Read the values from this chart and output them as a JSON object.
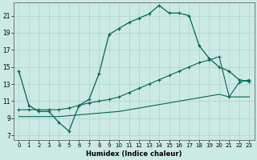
{
  "xlabel": "Humidex (Indice chaleur)",
  "bg_color": "#cceae4",
  "grid_color": "#aad4cc",
  "line_color": "#006655",
  "xlim": [
    -0.5,
    23.5
  ],
  "ylim": [
    6.5,
    22.5
  ],
  "xticks": [
    0,
    1,
    2,
    3,
    4,
    5,
    6,
    7,
    8,
    9,
    10,
    11,
    12,
    13,
    14,
    15,
    16,
    17,
    18,
    19,
    20,
    21,
    22,
    23
  ],
  "yticks": [
    7,
    9,
    11,
    13,
    15,
    17,
    19,
    21
  ],
  "line1_x": [
    0,
    1,
    2,
    3,
    4,
    5,
    6,
    7,
    8,
    9,
    10,
    11,
    12,
    13,
    14,
    15,
    16,
    17,
    18,
    19,
    20,
    21,
    22,
    23
  ],
  "line1_y": [
    14.5,
    10.5,
    9.8,
    9.8,
    8.5,
    7.5,
    10.5,
    11.2,
    14.2,
    18.8,
    19.5,
    20.2,
    20.7,
    21.2,
    22.2,
    21.3,
    21.3,
    21.0,
    17.5,
    16.0,
    15.0,
    14.5,
    13.5,
    13.3
  ],
  "line2_x": [
    0,
    1,
    2,
    3,
    4,
    5,
    6,
    7,
    8,
    9,
    10,
    11,
    12,
    13,
    14,
    15,
    16,
    17,
    18,
    19,
    20,
    21,
    22,
    23
  ],
  "line2_y": [
    10.0,
    10.0,
    10.0,
    10.0,
    10.0,
    10.2,
    10.5,
    10.8,
    11.0,
    11.2,
    11.5,
    12.0,
    12.5,
    13.0,
    13.5,
    14.0,
    14.5,
    15.0,
    15.5,
    15.8,
    16.2,
    11.5,
    13.2,
    13.5
  ],
  "line3_x": [
    0,
    1,
    2,
    3,
    4,
    5,
    6,
    7,
    8,
    9,
    10,
    11,
    12,
    13,
    14,
    15,
    16,
    17,
    18,
    19,
    20,
    21,
    22,
    23
  ],
  "line3_y": [
    9.2,
    9.2,
    9.2,
    9.2,
    9.2,
    9.3,
    9.4,
    9.5,
    9.6,
    9.7,
    9.8,
    10.0,
    10.2,
    10.4,
    10.6,
    10.8,
    11.0,
    11.2,
    11.4,
    11.6,
    11.8,
    11.5,
    11.5,
    11.5
  ]
}
